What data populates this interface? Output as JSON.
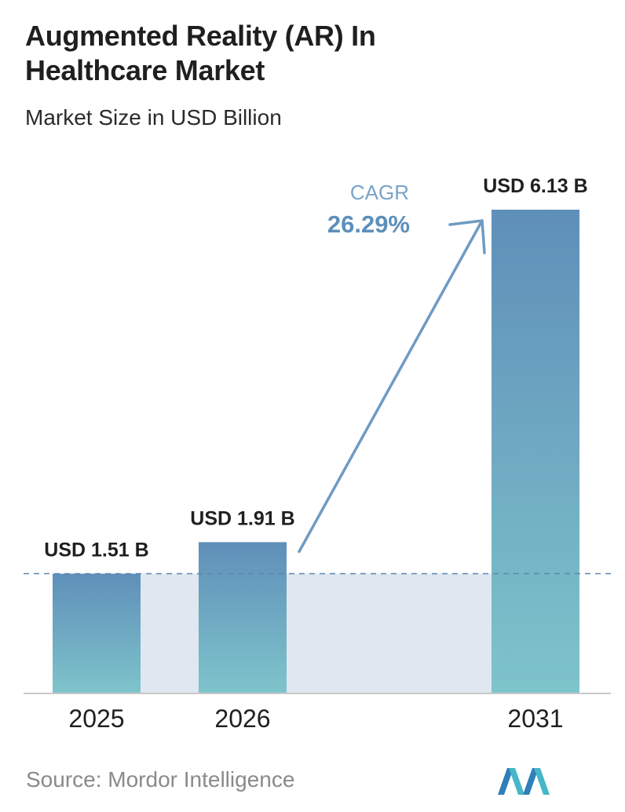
{
  "header": {
    "title": "Augmented Reality (AR) In Healthcare Market",
    "subtitle": "Market Size in USD Billion"
  },
  "cagr": {
    "label": "CAGR",
    "value": "26.29%"
  },
  "footer": {
    "source": "Source:  Mordor Intelligence"
  },
  "logo": {
    "icon": "mordor-intelligence-logo-icon"
  },
  "colors": {
    "bar_top": "#5f8fb9",
    "bar_bottom": "#7ec4cb",
    "band": "#dfe7f1",
    "arrow": "#6e9bc2",
    "cagr_label": "#7aa3c7",
    "cagr_value": "#5d8fbc",
    "dash": "#5b87b0",
    "axis": "#c8c8c8"
  },
  "chart_data": {
    "type": "bar",
    "title": "Augmented Reality (AR) In Healthcare Market",
    "subtitle": "Market Size in USD Billion",
    "categories": [
      "2025",
      "2026",
      "2031"
    ],
    "values": [
      1.51,
      1.91,
      6.13
    ],
    "data_labels": [
      "USD 1.51 B",
      "USD 1.91 B",
      "USD 6.13 B"
    ],
    "ylim": [
      0,
      6.13
    ],
    "grid": false,
    "annotation": "CAGR 26.29%"
  }
}
